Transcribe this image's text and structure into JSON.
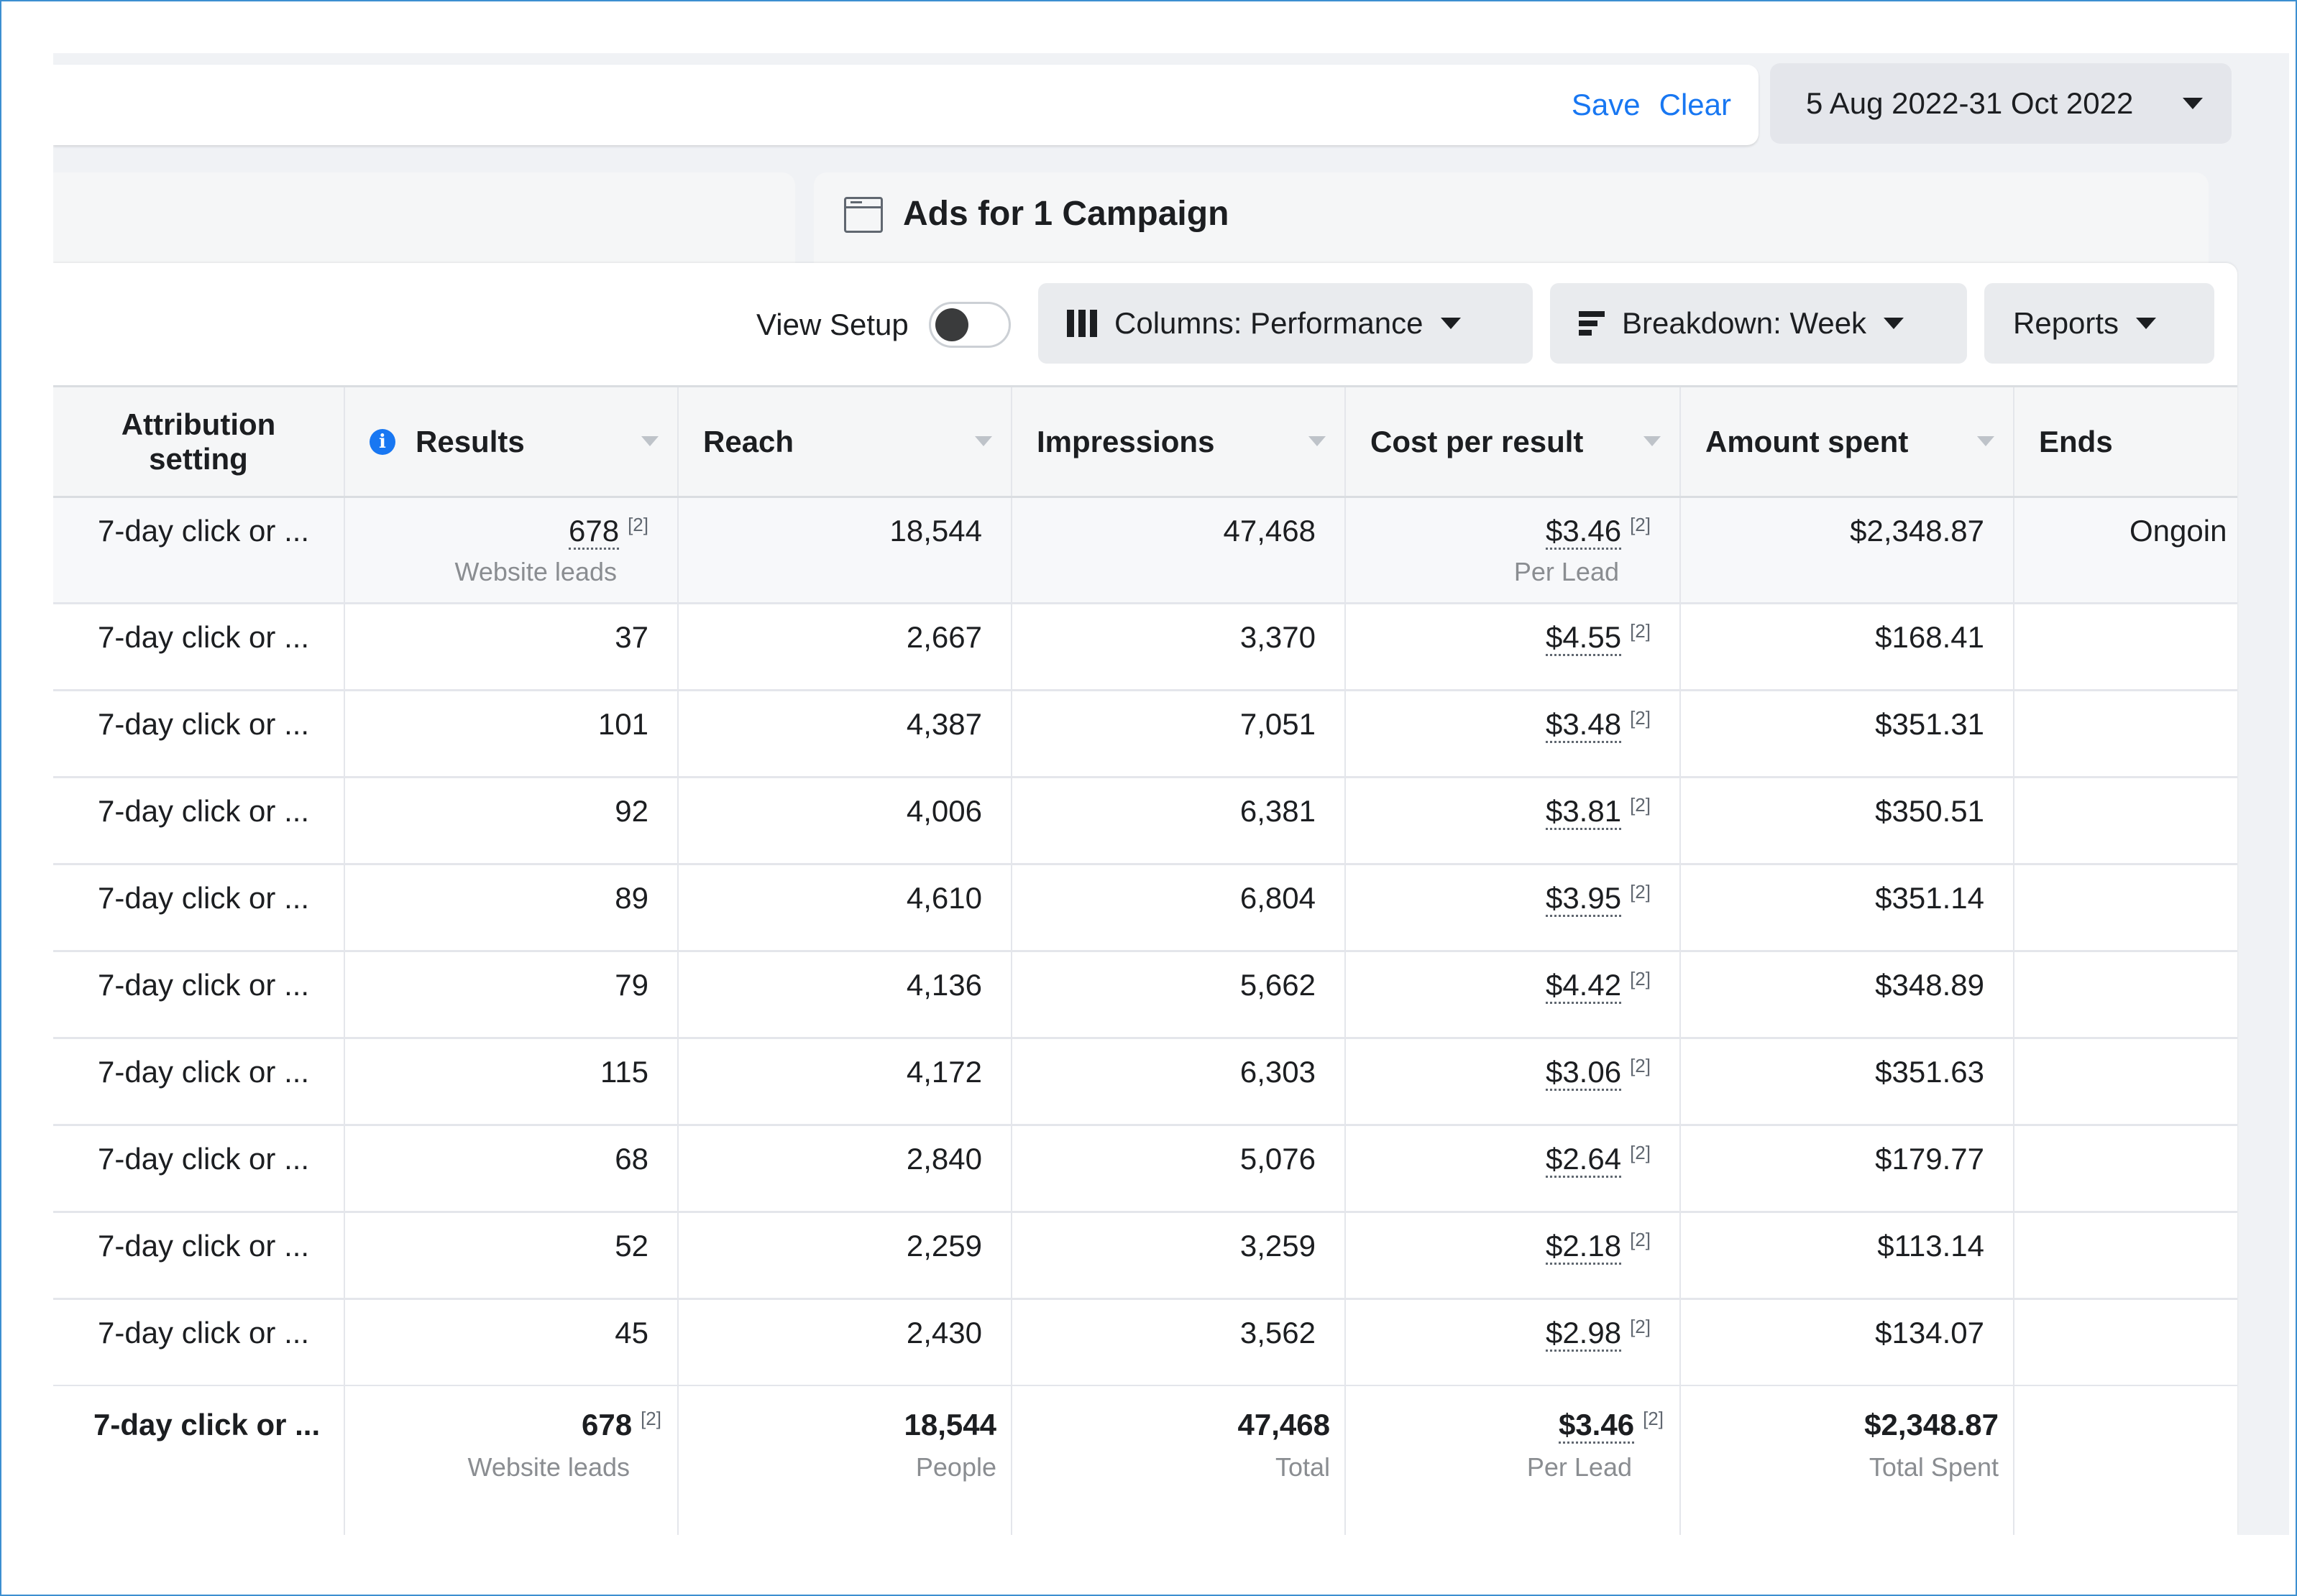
{
  "filter_bar": {
    "save_label": "Save",
    "clear_label": "Clear"
  },
  "date_range": {
    "label": "5 Aug 2022-31 Oct 2022"
  },
  "tab": {
    "title": "Ads for 1 Campaign"
  },
  "toolbar": {
    "view_setup_label": "View Setup",
    "view_setup_on": false,
    "columns_label": "Columns: Performance",
    "breakdown_label": "Breakdown: Week",
    "reports_label": "Reports"
  },
  "table": {
    "headers": {
      "attribution_line1": "Attribution",
      "attribution_line2": "setting",
      "results": "Results",
      "reach": "Reach",
      "impressions": "Impressions",
      "cost_per_result": "Cost per result",
      "amount_spent": "Amount spent",
      "ends": "Ends"
    },
    "total_row": {
      "attribution": "7-day click or ...",
      "results": "678",
      "results_note": "[2]",
      "results_sub": "Website leads",
      "reach": "18,544",
      "impressions": "47,468",
      "cost_per_result": "$3.46",
      "cost_note": "[2]",
      "cost_sub": "Per Lead",
      "amount_spent": "$2,348.87",
      "ends": "Ongoin"
    },
    "rows": [
      {
        "attribution": "7-day click or ...",
        "results": "37",
        "reach": "2,667",
        "impressions": "3,370",
        "cost_per_result": "$4.55",
        "cost_note": "[2]",
        "amount_spent": "$168.41"
      },
      {
        "attribution": "7-day click or ...",
        "results": "101",
        "reach": "4,387",
        "impressions": "7,051",
        "cost_per_result": "$3.48",
        "cost_note": "[2]",
        "amount_spent": "$351.31"
      },
      {
        "attribution": "7-day click or ...",
        "results": "92",
        "reach": "4,006",
        "impressions": "6,381",
        "cost_per_result": "$3.81",
        "cost_note": "[2]",
        "amount_spent": "$350.51"
      },
      {
        "attribution": "7-day click or ...",
        "results": "89",
        "reach": "4,610",
        "impressions": "6,804",
        "cost_per_result": "$3.95",
        "cost_note": "[2]",
        "amount_spent": "$351.14"
      },
      {
        "attribution": "7-day click or ...",
        "results": "79",
        "reach": "4,136",
        "impressions": "5,662",
        "cost_per_result": "$4.42",
        "cost_note": "[2]",
        "amount_spent": "$348.89"
      },
      {
        "attribution": "7-day click or ...",
        "results": "115",
        "reach": "4,172",
        "impressions": "6,303",
        "cost_per_result": "$3.06",
        "cost_note": "[2]",
        "amount_spent": "$351.63"
      },
      {
        "attribution": "7-day click or ...",
        "results": "68",
        "reach": "2,840",
        "impressions": "5,076",
        "cost_per_result": "$2.64",
        "cost_note": "[2]",
        "amount_spent": "$179.77"
      },
      {
        "attribution": "7-day click or ...",
        "results": "52",
        "reach": "2,259",
        "impressions": "3,259",
        "cost_per_result": "$2.18",
        "cost_note": "[2]",
        "amount_spent": "$113.14"
      },
      {
        "attribution": "7-day click or ...",
        "results": "45",
        "reach": "2,430",
        "impressions": "3,562",
        "cost_per_result": "$2.98",
        "cost_note": "[2]",
        "amount_spent": "$134.07"
      }
    ],
    "summary_row": {
      "attribution": "7-day click or ...",
      "results": "678",
      "results_note": "[2]",
      "results_sub": "Website leads",
      "reach": "18,544",
      "reach_sub": "People",
      "impressions": "47,468",
      "impressions_sub": "Total",
      "cost_per_result": "$3.46",
      "cost_note": "[2]",
      "cost_sub": "Per Lead",
      "amount_spent": "$2,348.87",
      "amount_sub": "Total Spent"
    }
  }
}
